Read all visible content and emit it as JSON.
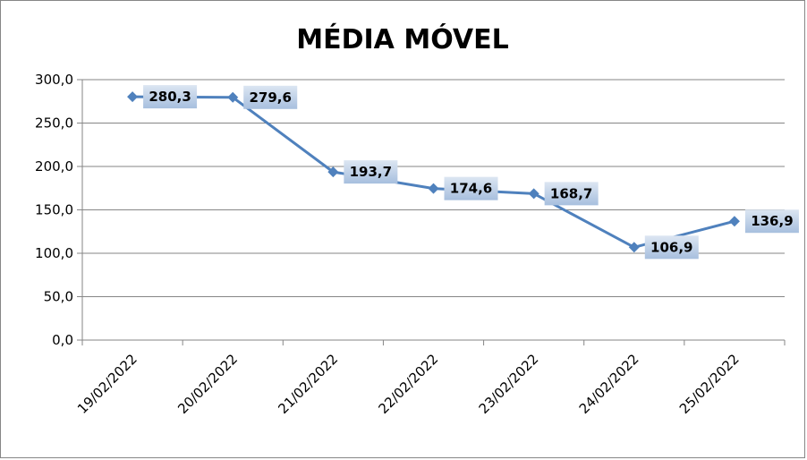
{
  "chart_data": {
    "type": "line",
    "title": "MÉDIA MÓVEL",
    "categories": [
      "19/02/2022",
      "20/02/2022",
      "21/02/2022",
      "22/02/2022",
      "23/02/2022",
      "24/02/2022",
      "25/02/2022"
    ],
    "series": [
      {
        "values": [
          280.3,
          279.6,
          193.7,
          174.6,
          168.7,
          106.9,
          136.9
        ]
      }
    ],
    "data_labels": [
      "280,3",
      "279,6",
      "193,7",
      "174,6",
      "168,7",
      "106,9",
      "136,9"
    ],
    "yticks": [
      "0,0",
      "50,0",
      "100,0",
      "150,0",
      "200,0",
      "250,0",
      "300,0"
    ],
    "ylim": [
      0,
      300
    ],
    "grid": true,
    "colors": {
      "line": "#4f81bd",
      "label_bg_top": "#dce6f2",
      "label_bg_bottom": "#a7bfde",
      "grid": "#868686"
    }
  }
}
